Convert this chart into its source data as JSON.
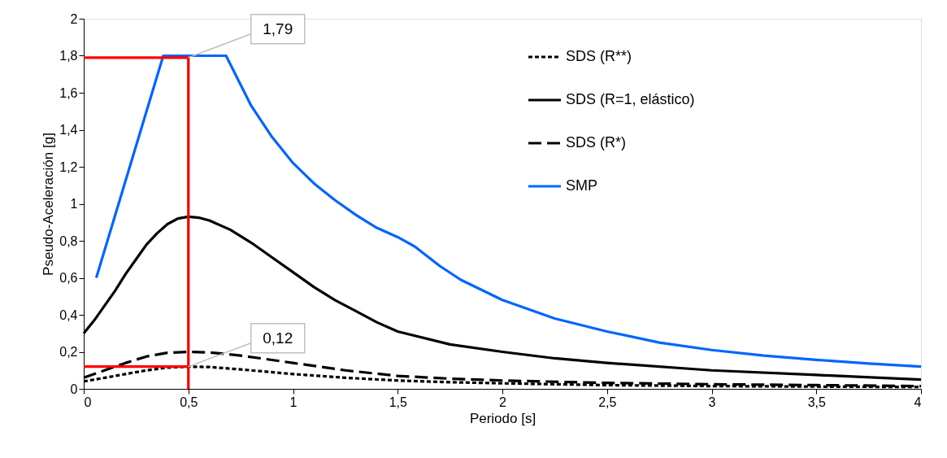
{
  "chart_data": {
    "type": "line",
    "xlabel": "Periodo [s]",
    "ylabel": "Pseudo-Aceleración [g]",
    "xlim": [
      0,
      4
    ],
    "ylim": [
      0,
      2
    ],
    "xticks": [
      0,
      {
        "value": 0.5,
        "label": "0,5"
      },
      1,
      {
        "value": 1.5,
        "label": "1,5"
      },
      2,
      {
        "value": 2.5,
        "label": "2,5"
      },
      3,
      {
        "value": 3.5,
        "label": "3,5"
      },
      4
    ],
    "yticks": [
      0,
      {
        "value": 0.2,
        "label": "0,2"
      },
      {
        "value": 0.4,
        "label": "0,4"
      },
      {
        "value": 0.6,
        "label": "0,6"
      },
      {
        "value": 0.8,
        "label": "0,8"
      },
      1,
      {
        "value": 1.2,
        "label": "1,2"
      },
      {
        "value": 1.4,
        "label": "1,4"
      },
      {
        "value": 1.6,
        "label": "1,6"
      },
      {
        "value": 1.8,
        "label": "1,8"
      },
      2
    ],
    "grid": false,
    "legend": "top right",
    "marker": "none",
    "series": [
      {
        "name": "SDS (R**)",
        "color": "#000000",
        "line_style": "dotted",
        "x": [
          0,
          0.1,
          0.2,
          0.3,
          0.4,
          0.5,
          0.6,
          0.75,
          1,
          1.25,
          1.5,
          1.75,
          2,
          2.5,
          3,
          3.5,
          4
        ],
        "values": [
          0.04,
          0.06,
          0.08,
          0.1,
          0.115,
          0.12,
          0.118,
          0.105,
          0.08,
          0.06,
          0.045,
          0.036,
          0.03,
          0.02,
          0.015,
          0.012,
          0.01
        ]
      },
      {
        "name": "SDS (R=1, elástico)",
        "color": "#000000",
        "line_style": "solid",
        "x": [
          0,
          0.05,
          0.1,
          0.15,
          0.2,
          0.25,
          0.3,
          0.35,
          0.4,
          0.45,
          0.5,
          0.55,
          0.6,
          0.7,
          0.8,
          0.9,
          1,
          1.1,
          1.2,
          1.3,
          1.4,
          1.5,
          1.75,
          2,
          2.25,
          2.5,
          3,
          3.5,
          4
        ],
        "values": [
          0.3,
          0.37,
          0.45,
          0.53,
          0.62,
          0.7,
          0.78,
          0.84,
          0.89,
          0.92,
          0.93,
          0.925,
          0.91,
          0.86,
          0.79,
          0.71,
          0.63,
          0.55,
          0.48,
          0.42,
          0.36,
          0.31,
          0.24,
          0.2,
          0.165,
          0.14,
          0.1,
          0.075,
          0.05
        ]
      },
      {
        "name": "SDS (R*)",
        "color": "#000000",
        "line_style": "dashed",
        "x": [
          0,
          0.1,
          0.2,
          0.3,
          0.4,
          0.5,
          0.6,
          0.75,
          1,
          1.25,
          1.5,
          1.75,
          2,
          2.5,
          3,
          3.5,
          4
        ],
        "values": [
          0.06,
          0.1,
          0.14,
          0.175,
          0.195,
          0.2,
          0.197,
          0.18,
          0.14,
          0.1,
          0.07,
          0.055,
          0.045,
          0.032,
          0.025,
          0.02,
          0.015
        ]
      },
      {
        "name": "SMP",
        "color": "#0066ff",
        "line_style": "solid",
        "x": [
          0.06,
          0.38,
          0.68,
          0.8,
          0.9,
          1,
          1.1,
          1.2,
          1.3,
          1.4,
          1.5,
          1.58,
          1.7,
          1.8,
          2,
          2.25,
          2.5,
          2.75,
          3,
          3.25,
          3.5,
          3.75,
          4
        ],
        "values": [
          0.6,
          1.8,
          1.8,
          1.53,
          1.36,
          1.22,
          1.11,
          1.02,
          0.94,
          0.87,
          0.82,
          0.77,
          0.665,
          0.59,
          0.48,
          0.38,
          0.31,
          0.25,
          0.21,
          0.18,
          0.157,
          0.137,
          0.12
        ]
      },
      {
        "color": "#ff0000",
        "line_style": "solid",
        "x": [
          0,
          0.5
        ],
        "values": [
          1.79,
          1.79
        ]
      },
      {
        "color": "#ff0000",
        "line_style": "solid",
        "x": [
          0.5,
          0.5
        ],
        "values": [
          0,
          1.79
        ]
      },
      {
        "color": "#ff0000",
        "line_style": "solid",
        "x": [
          0,
          0.5
        ],
        "values": [
          0.12,
          0.12
        ]
      }
    ],
    "annotations": [
      {
        "text": "1,79",
        "x": 0.5,
        "y": 1.79
      },
      {
        "text": "0,12",
        "x": 0.5,
        "y": 0.12
      }
    ]
  }
}
